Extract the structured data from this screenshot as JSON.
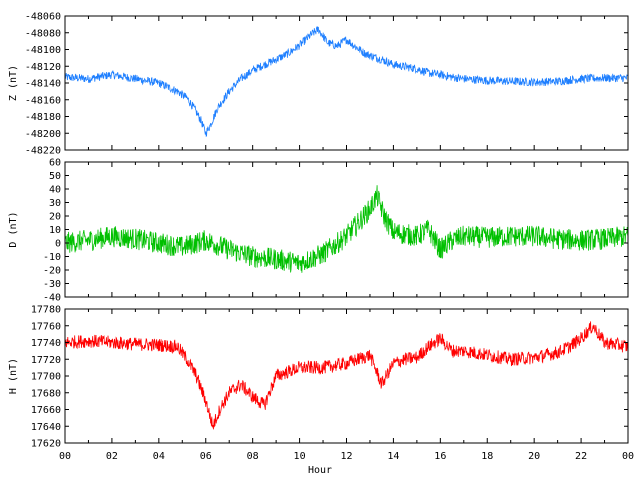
{
  "chart_data": {
    "type": "line",
    "xlabel": "Hour",
    "x_tick_labels": [
      "00",
      "02",
      "04",
      "06",
      "08",
      "10",
      "12",
      "14",
      "16",
      "18",
      "20",
      "22",
      "00"
    ],
    "x_range_hours": [
      0,
      24
    ],
    "grid": false,
    "panels": [
      {
        "id": "z",
        "ylabel": "Z (nT)",
        "color": "#1e7fff",
        "ylim": [
          -48220,
          -48060
        ],
        "yticks": [
          -48060,
          -48080,
          -48100,
          -48120,
          -48140,
          -48160,
          -48180,
          -48200,
          -48220
        ],
        "noise": 5,
        "series": {
          "name": "",
          "x": [
            0,
            1,
            2,
            3,
            4,
            4.8,
            5.2,
            5.5,
            5.8,
            6.0,
            6.2,
            6.5,
            7.0,
            7.5,
            8,
            8.5,
            9,
            9.5,
            10,
            10.5,
            10.8,
            11.2,
            11.6,
            12,
            12.3,
            12.8,
            13.5,
            14,
            15,
            15.5,
            16,
            16.5,
            17,
            18,
            19,
            20,
            21,
            22,
            23,
            24
          ],
          "y": [
            -48133,
            -48135,
            -48130,
            -48135,
            -48140,
            -48150,
            -48158,
            -48170,
            -48185,
            -48200,
            -48190,
            -48170,
            -48150,
            -48135,
            -48125,
            -48118,
            -48112,
            -48105,
            -48095,
            -48082,
            -48076,
            -48092,
            -48096,
            -48088,
            -48095,
            -48105,
            -48112,
            -48118,
            -48123,
            -48128,
            -48130,
            -48133,
            -48135,
            -48137,
            -48138,
            -48139,
            -48138,
            -48135,
            -48134,
            -48134
          ]
        }
      },
      {
        "id": "d",
        "ylabel": "D (nT)",
        "color": "#00c000",
        "ylim": [
          -40,
          60
        ],
        "yticks": [
          60,
          50,
          40,
          30,
          20,
          10,
          0,
          -10,
          -20,
          -30,
          -40
        ],
        "noise": 8,
        "series": {
          "name": "",
          "x": [
            0,
            1,
            2,
            3,
            4,
            5,
            6,
            7,
            8,
            9,
            10,
            11,
            12,
            12.5,
            13,
            13.3,
            13.6,
            14,
            15,
            15.5,
            16,
            16.5,
            17,
            18,
            19,
            20,
            21,
            22,
            23,
            24
          ],
          "y": [
            0,
            2,
            5,
            3,
            0,
            -3,
            2,
            -5,
            -10,
            -12,
            -15,
            -8,
            5,
            15,
            25,
            35,
            20,
            8,
            5,
            10,
            -5,
            2,
            5,
            4,
            5,
            5,
            3,
            2,
            3,
            5
          ]
        }
      },
      {
        "id": "h",
        "ylabel": "H (nT)",
        "color": "#ff0000",
        "ylim": [
          17620,
          17780
        ],
        "yticks": [
          17780,
          17760,
          17740,
          17720,
          17700,
          17680,
          17660,
          17640,
          17620
        ],
        "noise": 8,
        "series": {
          "name": "",
          "x": [
            0,
            1,
            2,
            3,
            4,
            4.8,
            5.2,
            5.6,
            6.0,
            6.3,
            6.6,
            7.0,
            7.5,
            8.0,
            8.5,
            9.0,
            9.5,
            10,
            11,
            12,
            12.5,
            13,
            13.5,
            14,
            14.5,
            15,
            15.5,
            16,
            16.5,
            17,
            18,
            19,
            20,
            21,
            21.5,
            22,
            22.5,
            23,
            24
          ],
          "y": [
            17740,
            17742,
            17740,
            17738,
            17737,
            17735,
            17720,
            17700,
            17670,
            17640,
            17660,
            17680,
            17690,
            17675,
            17665,
            17700,
            17705,
            17710,
            17710,
            17715,
            17720,
            17725,
            17690,
            17715,
            17720,
            17722,
            17735,
            17745,
            17730,
            17730,
            17725,
            17720,
            17722,
            17728,
            17735,
            17745,
            17760,
            17740,
            17735
          ]
        }
      }
    ]
  }
}
